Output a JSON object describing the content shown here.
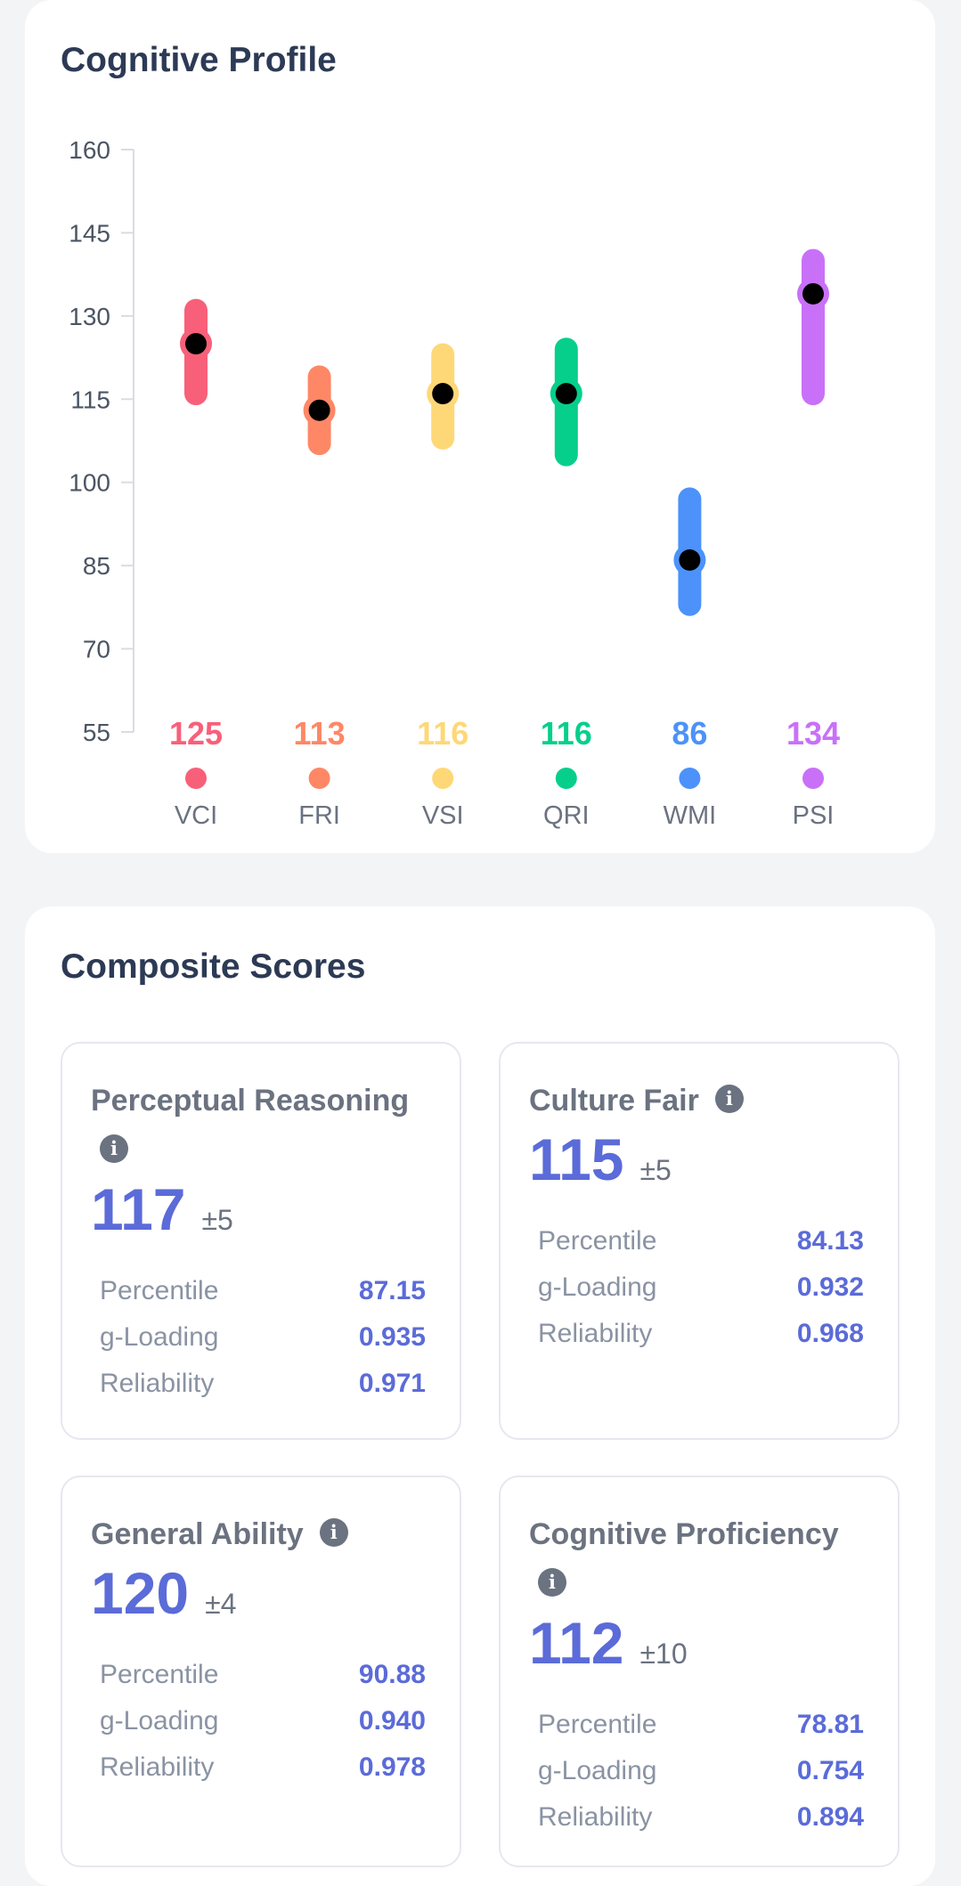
{
  "profile": {
    "title": "Cognitive Profile",
    "chart_data": {
      "type": "scatter",
      "title": "",
      "xlabel": "",
      "ylabel": "",
      "ylim": [
        55,
        160
      ],
      "yticks": [
        160,
        145,
        130,
        115,
        100,
        85,
        70,
        55
      ],
      "grid": false,
      "categories": [
        "VCI",
        "FRI",
        "VSI",
        "QRI",
        "WMI",
        "PSI"
      ],
      "scores": [
        125,
        113,
        116,
        116,
        86,
        134
      ],
      "ci_low": [
        116,
        107,
        108,
        105,
        78,
        116
      ],
      "ci_high": [
        131,
        119,
        123,
        124,
        97,
        140
      ],
      "colors": [
        "#f8607a",
        "#fe8766",
        "#fed877",
        "#06cf8b",
        "#4c92fa",
        "#c970f8"
      ]
    }
  },
  "composite": {
    "title": "Composite Scores",
    "labels": {
      "percentile": "Percentile",
      "gloading": "g-Loading",
      "reliability": "Reliability"
    },
    "info_icon": "info-icon",
    "cards": [
      {
        "name": "Perceptual Reasoning",
        "score": "117",
        "error": "±5",
        "percentile": "87.15",
        "gloading": "0.935",
        "reliability": "0.971"
      },
      {
        "name": "Culture Fair",
        "score": "115",
        "error": "±5",
        "percentile": "84.13",
        "gloading": "0.932",
        "reliability": "0.968"
      },
      {
        "name": "General Ability",
        "score": "120",
        "error": "±4",
        "percentile": "90.88",
        "gloading": "0.940",
        "reliability": "0.978"
      },
      {
        "name": "Cognitive Proficiency",
        "score": "112",
        "error": "±10",
        "percentile": "78.81",
        "gloading": "0.754",
        "reliability": "0.894"
      }
    ]
  },
  "colors": {
    "accent": "#5b6bd8",
    "title": "#2d3a55",
    "muted": "#6b7280"
  }
}
